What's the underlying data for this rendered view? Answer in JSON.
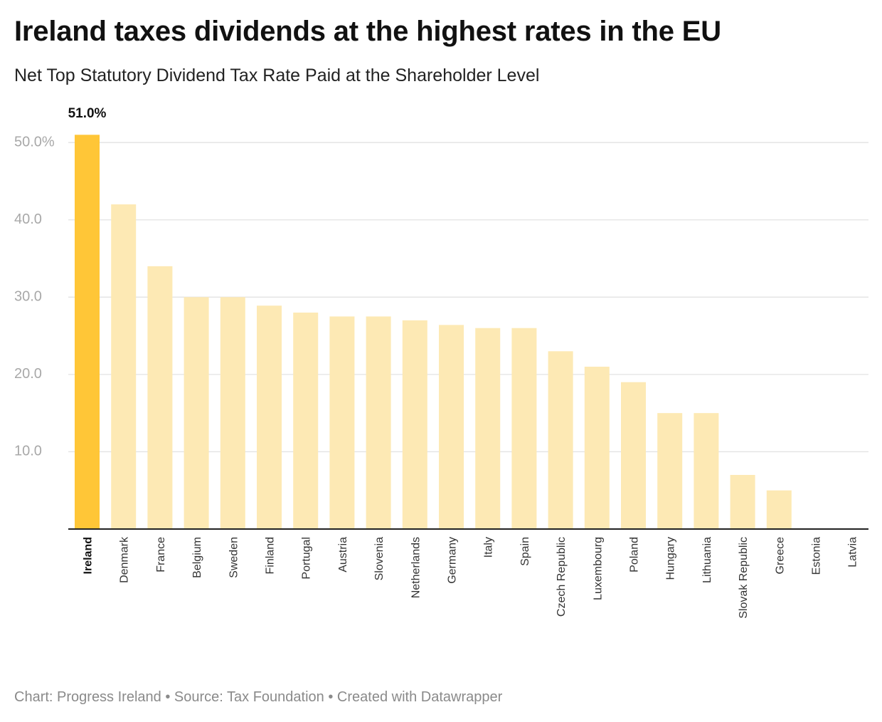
{
  "header": {
    "title": "Ireland taxes dividends at the highest rates in the EU",
    "subtitle": "Net Top Statutory Dividend Tax Rate Paid at the Shareholder Level"
  },
  "footer": {
    "credit_prefix": "Chart: ",
    "credit_org": "Progress Ireland",
    "separator": " • ",
    "source_prefix": "Source: ",
    "source_org": "Tax Foundation",
    "created_with": "Created with Datawrapper"
  },
  "colors": {
    "highlight": "#ffc637",
    "bar": "#fde9b4",
    "grid": "#e3e3e3",
    "axis": "#222222"
  },
  "chart_data": {
    "type": "bar",
    "title": "Ireland taxes dividends at the highest rates in the EU",
    "subtitle": "Net Top Statutory Dividend Tax Rate Paid at the Shareholder Level",
    "xlabel": "",
    "ylabel": "",
    "ylim": [
      0,
      53.7
    ],
    "yticks": [
      10,
      20,
      30,
      40,
      50
    ],
    "ytick_labels": [
      "10.0",
      "20.0",
      "30.0",
      "40.0",
      "50.0%"
    ],
    "grid": true,
    "highlight_category": "Ireland",
    "highlight_label": "51.0%",
    "categories": [
      "Ireland",
      "Denmark",
      "France",
      "Belgium",
      "Sweden",
      "Finland",
      "Portugal",
      "Austria",
      "Slovenia",
      "Netherlands",
      "Germany",
      "Italy",
      "Spain",
      "Czech Republic",
      "Luxembourg",
      "Poland",
      "Hungary",
      "Lithuania",
      "Slovak Republic",
      "Greece",
      "Estonia",
      "Latvia"
    ],
    "values": [
      51.0,
      42.0,
      34.0,
      30.0,
      30.0,
      28.9,
      28.0,
      27.5,
      27.5,
      27.0,
      26.4,
      26.0,
      26.0,
      23.0,
      21.0,
      19.0,
      15.0,
      15.0,
      7.0,
      5.0,
      0,
      0
    ]
  }
}
